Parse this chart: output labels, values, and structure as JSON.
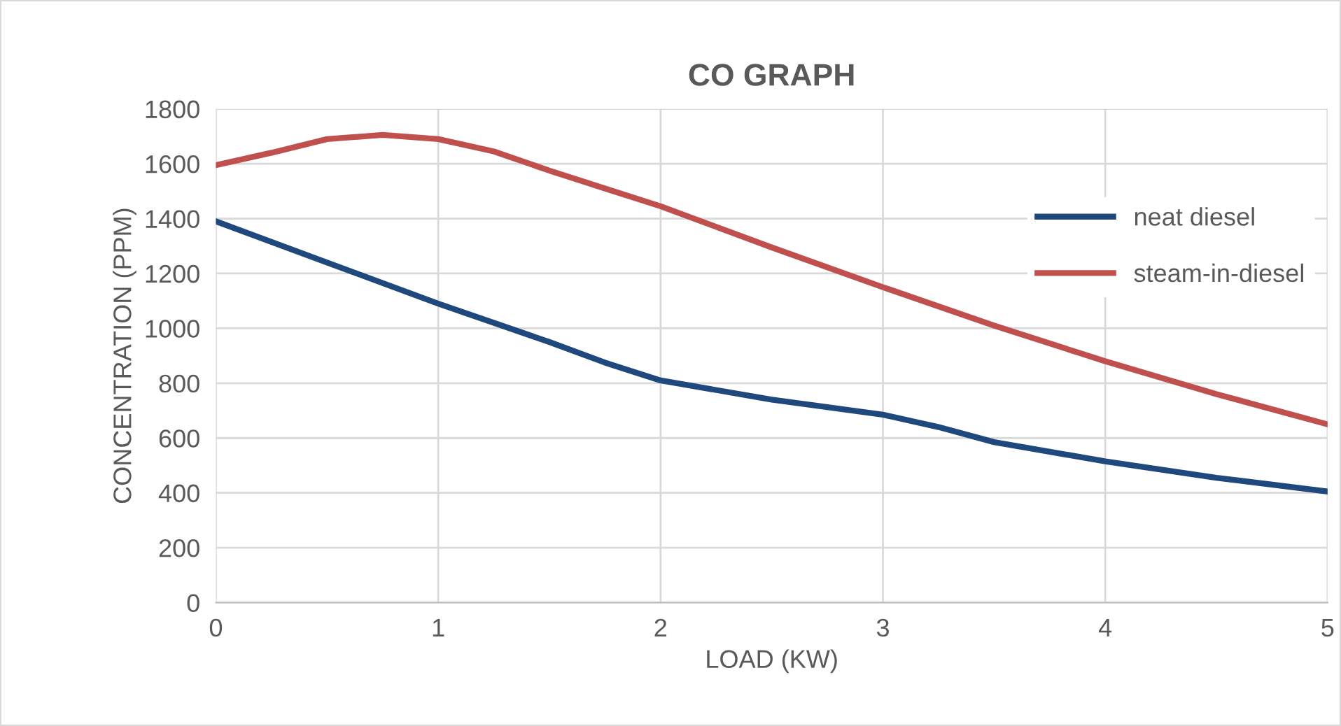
{
  "chart_data": {
    "type": "line",
    "title": "CO GRAPH",
    "xlabel": "LOAD (KW)",
    "ylabel": "CONCENTRATION (PPM)",
    "series": [
      {
        "name": "neat diesel",
        "color": "#1f497d",
        "x": [
          0,
          0.5,
          1,
          1.5,
          1.75,
          2,
          2.5,
          3,
          3.25,
          3.5,
          3.75,
          4,
          4.5,
          5
        ],
        "values": [
          1390,
          1240,
          1090,
          950,
          875,
          810,
          740,
          685,
          640,
          585,
          550,
          515,
          455,
          405
        ]
      },
      {
        "name": "steam-in-diesel",
        "color": "#c0504d",
        "x": [
          0,
          0.25,
          0.5,
          0.75,
          1,
          1.25,
          1.5,
          1.75,
          2,
          2.5,
          3,
          3.5,
          4,
          4.5,
          5
        ],
        "values": [
          1595,
          1640,
          1690,
          1705,
          1690,
          1645,
          1575,
          1510,
          1445,
          1295,
          1150,
          1010,
          880,
          760,
          650
        ]
      }
    ],
    "xlim": [
      0,
      5
    ],
    "xticks": [
      0,
      1,
      2,
      3,
      4,
      5
    ],
    "ylim": [
      0,
      1800
    ],
    "yticks": [
      0,
      200,
      400,
      600,
      800,
      1000,
      1200,
      1400,
      1600,
      1800
    ],
    "grid": true,
    "legend": "right",
    "marker": "none",
    "line_style": "solid"
  }
}
